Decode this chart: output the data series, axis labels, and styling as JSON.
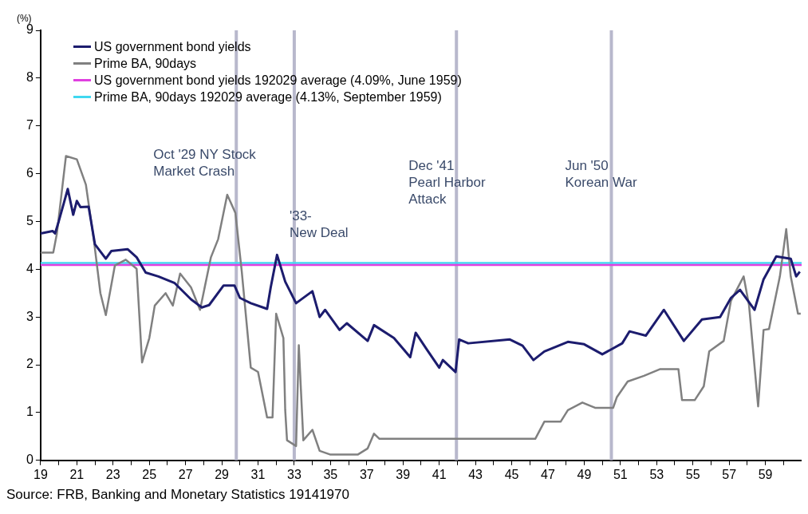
{
  "chart_data": {
    "type": "line",
    "ylabel": "(%)",
    "xlim": [
      1919,
      1961
    ],
    "xticks": [
      {
        "value": 1919,
        "label": "19"
      },
      {
        "value": 1920,
        "label": null
      },
      {
        "value": 1921,
        "label": "21"
      },
      {
        "value": 1922,
        "label": null
      },
      {
        "value": 1923,
        "label": "23"
      },
      {
        "value": 1924,
        "label": null
      },
      {
        "value": 1925,
        "label": "25"
      },
      {
        "value": 1926,
        "label": null
      },
      {
        "value": 1927,
        "label": "27"
      },
      {
        "value": 1928,
        "label": null
      },
      {
        "value": 1929,
        "label": "29"
      },
      {
        "value": 1930,
        "label": null
      },
      {
        "value": 1931,
        "label": "31"
      },
      {
        "value": 1932,
        "label": null
      },
      {
        "value": 1933,
        "label": "33"
      },
      {
        "value": 1934,
        "label": null
      },
      {
        "value": 1935,
        "label": "35"
      },
      {
        "value": 1936,
        "label": null
      },
      {
        "value": 1937,
        "label": "37"
      },
      {
        "value": 1938,
        "label": null
      },
      {
        "value": 1939,
        "label": "39"
      },
      {
        "value": 1940,
        "label": null
      },
      {
        "value": 1941,
        "label": "41"
      },
      {
        "value": 1942,
        "label": null
      },
      {
        "value": 1943,
        "label": "43"
      },
      {
        "value": 1944,
        "label": null
      },
      {
        "value": 1945,
        "label": "45"
      },
      {
        "value": 1946,
        "label": null
      },
      {
        "value": 1947,
        "label": "47"
      },
      {
        "value": 1948,
        "label": null
      },
      {
        "value": 1949,
        "label": "49"
      },
      {
        "value": 1950,
        "label": null
      },
      {
        "value": 1951,
        "label": "51"
      },
      {
        "value": 1952,
        "label": null
      },
      {
        "value": 1953,
        "label": "53"
      },
      {
        "value": 1954,
        "label": null
      },
      {
        "value": 1955,
        "label": "55"
      },
      {
        "value": 1956,
        "label": null
      },
      {
        "value": 1957,
        "label": "57"
      },
      {
        "value": 1958,
        "label": null
      },
      {
        "value": 1959,
        "label": "59"
      },
      {
        "value": 1960,
        "label": null
      }
    ],
    "ylim": [
      0,
      9
    ],
    "yticks": [
      0,
      1,
      2,
      3,
      4,
      5,
      6,
      7,
      8,
      9
    ],
    "grid": false,
    "legend": "top left",
    "marker": "none",
    "line_style": "solid",
    "series": [
      {
        "name": "US government bond yields",
        "color": "#1c1c6e",
        "x": [
          1919.0,
          1919.66,
          1919.8,
          1920.0,
          1920.5,
          1920.8,
          1921.0,
          1921.2,
          1921.65,
          1922.0,
          1922.6,
          1922.9,
          1923.8,
          1924.3,
          1924.8,
          1925.5,
          1926.4,
          1927.3,
          1927.9,
          1928.3,
          1929.1,
          1929.7,
          1930.0,
          1930.6,
          1931.5,
          1931.7,
          1932.05,
          1932.5,
          1933.1,
          1934.0,
          1934.4,
          1934.7,
          1935.5,
          1935.9,
          1937.05,
          1937.4,
          1938.5,
          1939.4,
          1939.7,
          1940.3,
          1941.0,
          1941.2,
          1941.9,
          1942.1,
          1942.6,
          1944.9,
          1945.6,
          1946.2,
          1946.8,
          1948.1,
          1949.0,
          1950.0,
          1951.1,
          1951.5,
          1952.4,
          1953.4,
          1954.5,
          1955.5,
          1956.5,
          1957.1,
          1957.6,
          1958.4,
          1958.9,
          1959.6,
          1960.4,
          1960.7,
          1960.9
        ],
        "values": [
          4.75,
          4.8,
          4.75,
          5.0,
          5.68,
          5.14,
          5.43,
          5.3,
          5.31,
          4.52,
          4.22,
          4.38,
          4.42,
          4.25,
          3.93,
          3.85,
          3.71,
          3.37,
          3.2,
          3.25,
          3.66,
          3.66,
          3.4,
          3.29,
          3.17,
          3.62,
          4.3,
          3.74,
          3.29,
          3.54,
          3.0,
          3.15,
          2.73,
          2.87,
          2.5,
          2.83,
          2.56,
          2.16,
          2.67,
          2.33,
          1.94,
          2.1,
          1.85,
          2.53,
          2.45,
          2.53,
          2.4,
          2.1,
          2.28,
          2.48,
          2.43,
          2.22,
          2.45,
          2.7,
          2.61,
          3.15,
          2.5,
          2.95,
          3.0,
          3.4,
          3.57,
          3.15,
          3.79,
          4.27,
          4.22,
          3.85,
          3.95
        ]
      },
      {
        "name": "Prime BA, 90days",
        "color": "#808080",
        "x": [
          1919.0,
          1919.7,
          1919.9,
          1920.4,
          1921.0,
          1921.5,
          1921.95,
          1922.3,
          1922.6,
          1923.1,
          1923.7,
          1924.3,
          1924.6,
          1925.0,
          1925.3,
          1925.9,
          1926.3,
          1926.7,
          1927.3,
          1927.8,
          1928.4,
          1928.8,
          1929.3,
          1929.75,
          1930.1,
          1930.6,
          1931.0,
          1931.5,
          1931.8,
          1932.0,
          1932.4,
          1932.5,
          1932.6,
          1933.1,
          1933.25,
          1933.5,
          1934.0,
          1934.4,
          1935.0,
          1936.5,
          1937.05,
          1937.4,
          1937.7,
          1946.3,
          1946.8,
          1947.7,
          1948.1,
          1948.9,
          1949.6,
          1950.6,
          1950.8,
          1951.4,
          1952.3,
          1953.2,
          1954.2,
          1954.4,
          1955.1,
          1955.6,
          1955.9,
          1956.7,
          1957.1,
          1957.8,
          1958.1,
          1958.6,
          1958.9,
          1959.2,
          1959.8,
          1960.15,
          1960.4,
          1960.8,
          1960.95
        ],
        "values": [
          4.35,
          4.35,
          4.75,
          6.37,
          6.3,
          5.77,
          4.58,
          3.5,
          3.04,
          4.08,
          4.2,
          4.01,
          2.05,
          2.56,
          3.24,
          3.5,
          3.24,
          3.91,
          3.62,
          3.15,
          4.25,
          4.63,
          5.56,
          5.18,
          3.96,
          1.94,
          1.85,
          0.9,
          0.9,
          3.07,
          2.56,
          1.05,
          0.42,
          0.3,
          2.41,
          0.42,
          0.64,
          0.2,
          0.12,
          0.12,
          0.25,
          0.56,
          0.45,
          0.45,
          0.81,
          0.81,
          1.05,
          1.21,
          1.1,
          1.1,
          1.32,
          1.65,
          1.77,
          1.91,
          1.91,
          1.26,
          1.26,
          1.55,
          2.28,
          2.5,
          3.34,
          3.85,
          3.24,
          1.13,
          2.73,
          2.75,
          3.85,
          4.84,
          3.85,
          3.07,
          3.07
        ]
      },
      {
        "name": "US government bond yields 192029 average (4.09%, June 1959)",
        "color": "#e040e0",
        "x": [
          1919,
          1961
        ],
        "values": [
          4.09,
          4.09
        ]
      },
      {
        "name": "Prime BA, 90days 192029 average (4.13%, September 1959)",
        "color": "#40d8f0",
        "x": [
          1919,
          1961
        ],
        "values": [
          4.13,
          4.13
        ]
      }
    ],
    "ref_lines": [
      {
        "axis": "x",
        "value": 1929.8,
        "label": "Oct '29 NY Stock\nMarket Crash",
        "color": "#b8b8cc"
      },
      {
        "axis": "x",
        "value": 1933,
        "label": "'33-\nNew Deal",
        "color": "#b8b8cc"
      },
      {
        "axis": "x",
        "value": 1941.95,
        "label": "Dec '41\nPearl Harbor\nAttack",
        "color": "#b8b8cc"
      },
      {
        "axis": "x",
        "value": 1950.5,
        "label": "Jun '50\nKorean War",
        "color": "#b8b8cc"
      }
    ],
    "annotations": [
      "Source: FRB, Banking and Monetary Statistics 19141970"
    ]
  }
}
